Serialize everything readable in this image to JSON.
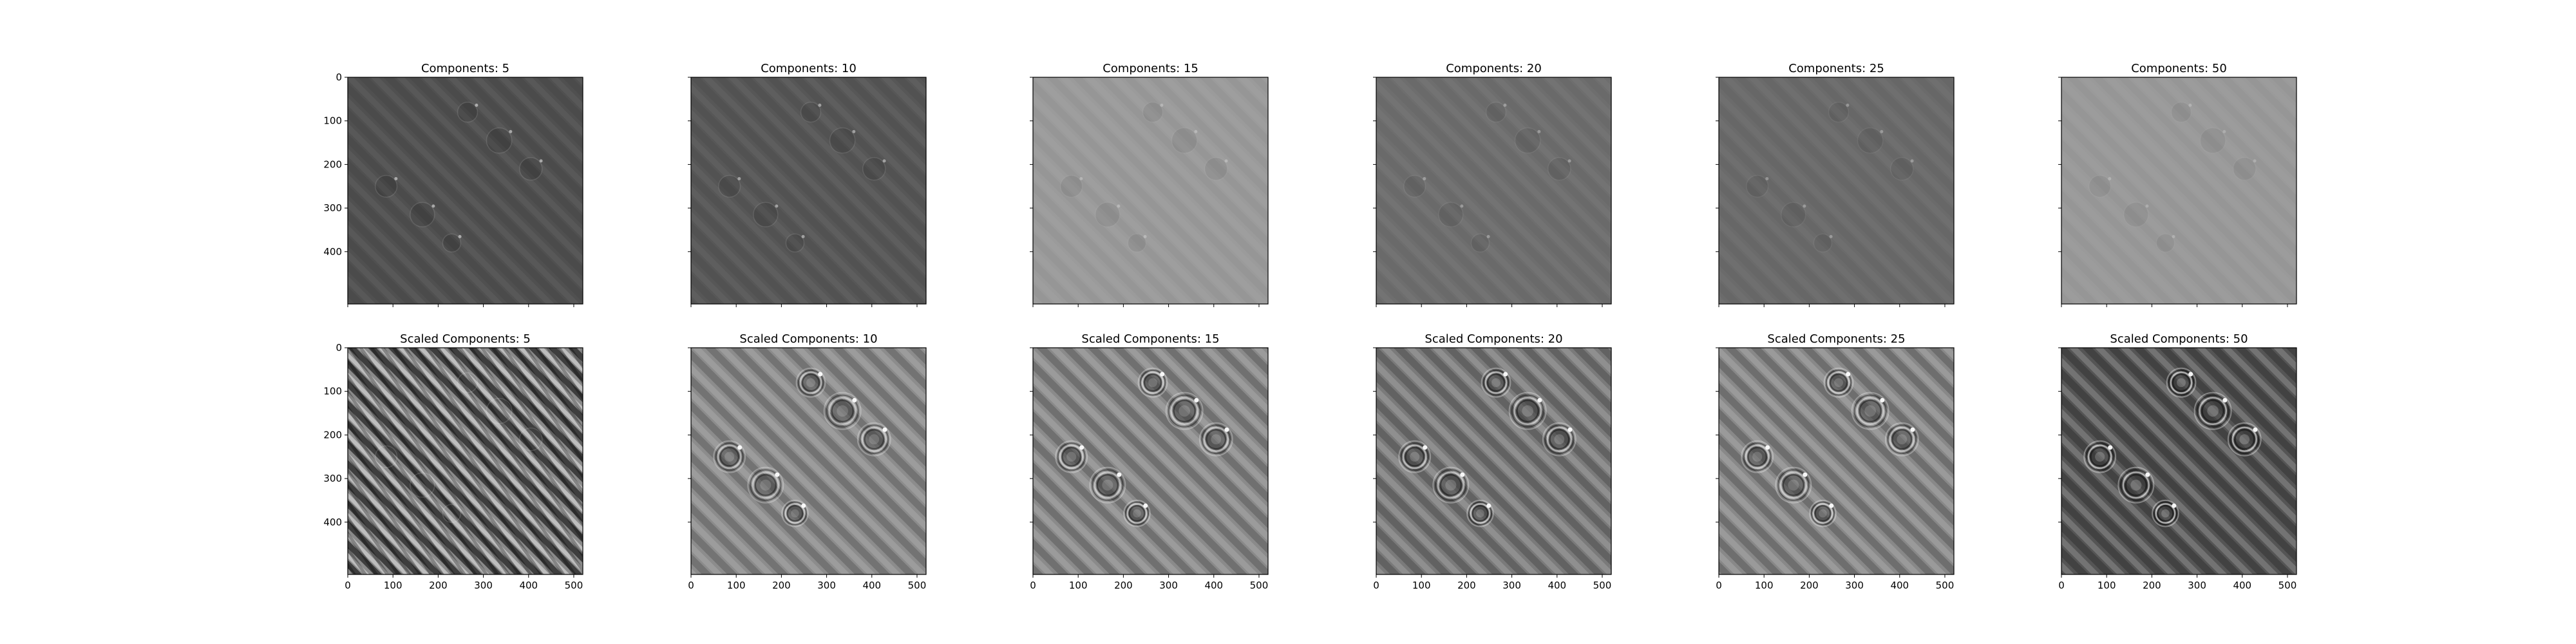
{
  "figure": {
    "panels": [
      {
        "title": "Components: 5",
        "row": 0,
        "col": 0,
        "tone": "#505050",
        "mode": "faint",
        "contrast": 1.0
      },
      {
        "title": "Components: 10",
        "row": 0,
        "col": 1,
        "tone": "#575757",
        "mode": "faint",
        "contrast": 0.9
      },
      {
        "title": "Components: 15",
        "row": 0,
        "col": 2,
        "tone": "#9b9b9b",
        "mode": "faint",
        "contrast": 0.55
      },
      {
        "title": "Components: 20",
        "row": 0,
        "col": 3,
        "tone": "#6e6e6e",
        "mode": "faint",
        "contrast": 0.65
      },
      {
        "title": "Components: 25",
        "row": 0,
        "col": 4,
        "tone": "#6b6b6b",
        "mode": "faint",
        "contrast": 0.6
      },
      {
        "title": "Components: 50",
        "row": 0,
        "col": 5,
        "tone": "#9a9a9a",
        "mode": "faint",
        "contrast": 0.45
      },
      {
        "title": "Scaled Components: 5",
        "row": 1,
        "col": 0,
        "tone": "#8a8a8a",
        "mode": "noisy",
        "contrast": 1.0
      },
      {
        "title": "Scaled Components: 10",
        "row": 1,
        "col": 1,
        "tone": "#8c8c8c",
        "mode": "rings",
        "contrast": 0.8
      },
      {
        "title": "Scaled Components: 15",
        "row": 1,
        "col": 2,
        "tone": "#8a8a8a",
        "mode": "rings",
        "contrast": 0.85
      },
      {
        "title": "Scaled Components: 20",
        "row": 1,
        "col": 3,
        "tone": "#7a7a7a",
        "mode": "rings",
        "contrast": 0.9
      },
      {
        "title": "Scaled Components: 25",
        "row": 1,
        "col": 4,
        "tone": "#888888",
        "mode": "rings",
        "contrast": 0.85
      },
      {
        "title": "Scaled Components: 50",
        "row": 1,
        "col": 5,
        "tone": "#555555",
        "mode": "rings",
        "contrast": 1.0
      }
    ],
    "y_ticks": [
      "0",
      "100",
      "200",
      "300",
      "400"
    ],
    "y_tick_values": [
      0,
      100,
      200,
      300,
      400
    ],
    "x_ticks": [
      "0",
      "100",
      "200",
      "300",
      "400",
      "500"
    ],
    "x_tick_values": [
      0,
      100,
      200,
      300,
      400,
      500
    ],
    "image_extent": [
      0,
      520
    ],
    "particles": [
      {
        "x": 265,
        "y": 80,
        "r": 22
      },
      {
        "x": 335,
        "y": 145,
        "r": 28
      },
      {
        "x": 405,
        "y": 210,
        "r": 25
      },
      {
        "x": 85,
        "y": 250,
        "r": 24
      },
      {
        "x": 165,
        "y": 315,
        "r": 27
      },
      {
        "x": 230,
        "y": 380,
        "r": 20
      }
    ]
  }
}
